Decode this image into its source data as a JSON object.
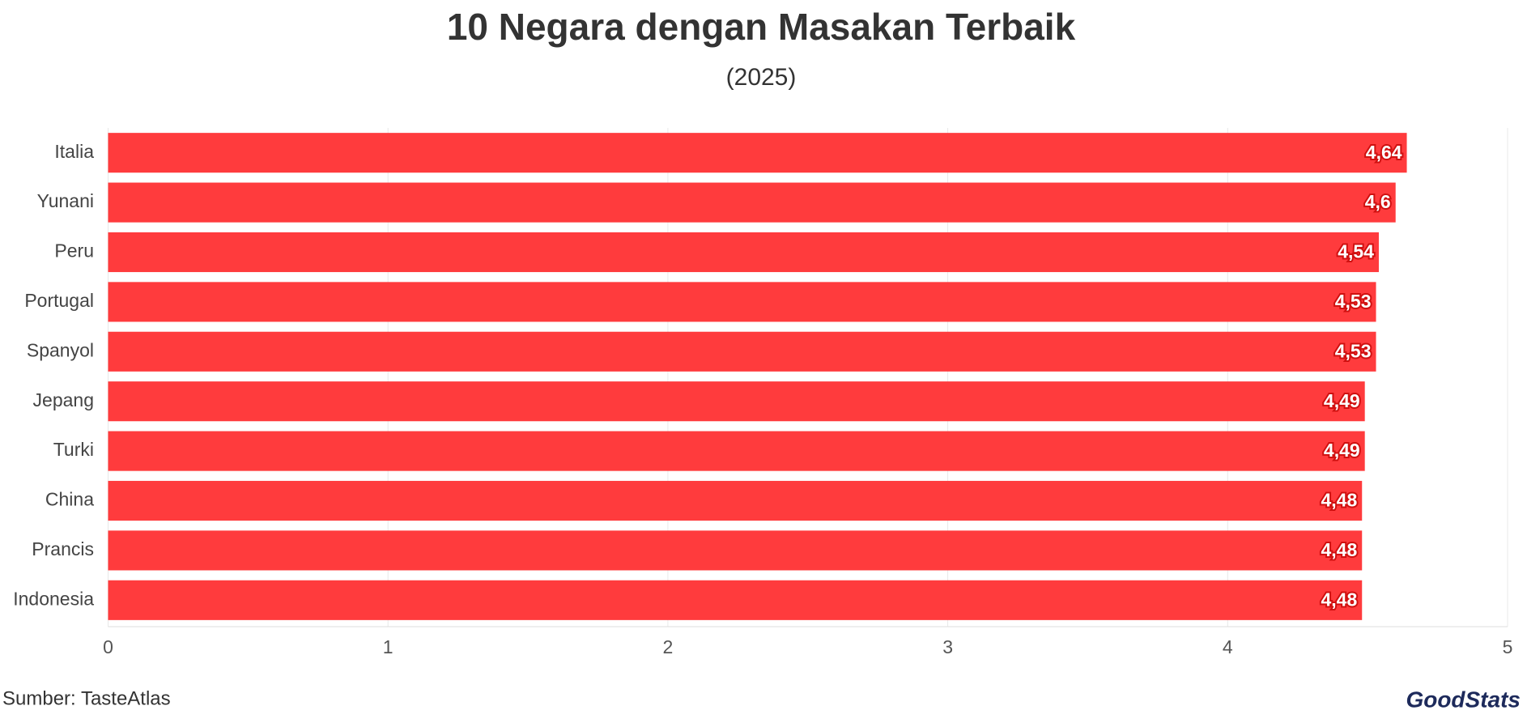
{
  "chart_data": {
    "type": "bar",
    "orientation": "horizontal",
    "title": "10 Negara dengan Masakan Terbaik",
    "subtitle": "(2025)",
    "categories": [
      "Italia",
      "Yunani",
      "Peru",
      "Portugal",
      "Spanyol",
      "Jepang",
      "Turki",
      "China",
      "Prancis",
      "Indonesia"
    ],
    "values": [
      4.64,
      4.6,
      4.54,
      4.53,
      4.53,
      4.49,
      4.49,
      4.48,
      4.48,
      4.48
    ],
    "value_labels": [
      "4,64",
      "4,6",
      "4,54",
      "4,53",
      "4,53",
      "4,49",
      "4,49",
      "4,48",
      "4,48",
      "4,48"
    ],
    "color": "#ff3b3d",
    "xlim": [
      0,
      5
    ],
    "xticks": [
      0,
      1,
      2,
      3,
      4,
      5
    ],
    "grid": true,
    "source": "Sumber: TasteAtlas",
    "logo": "GoodStats"
  }
}
